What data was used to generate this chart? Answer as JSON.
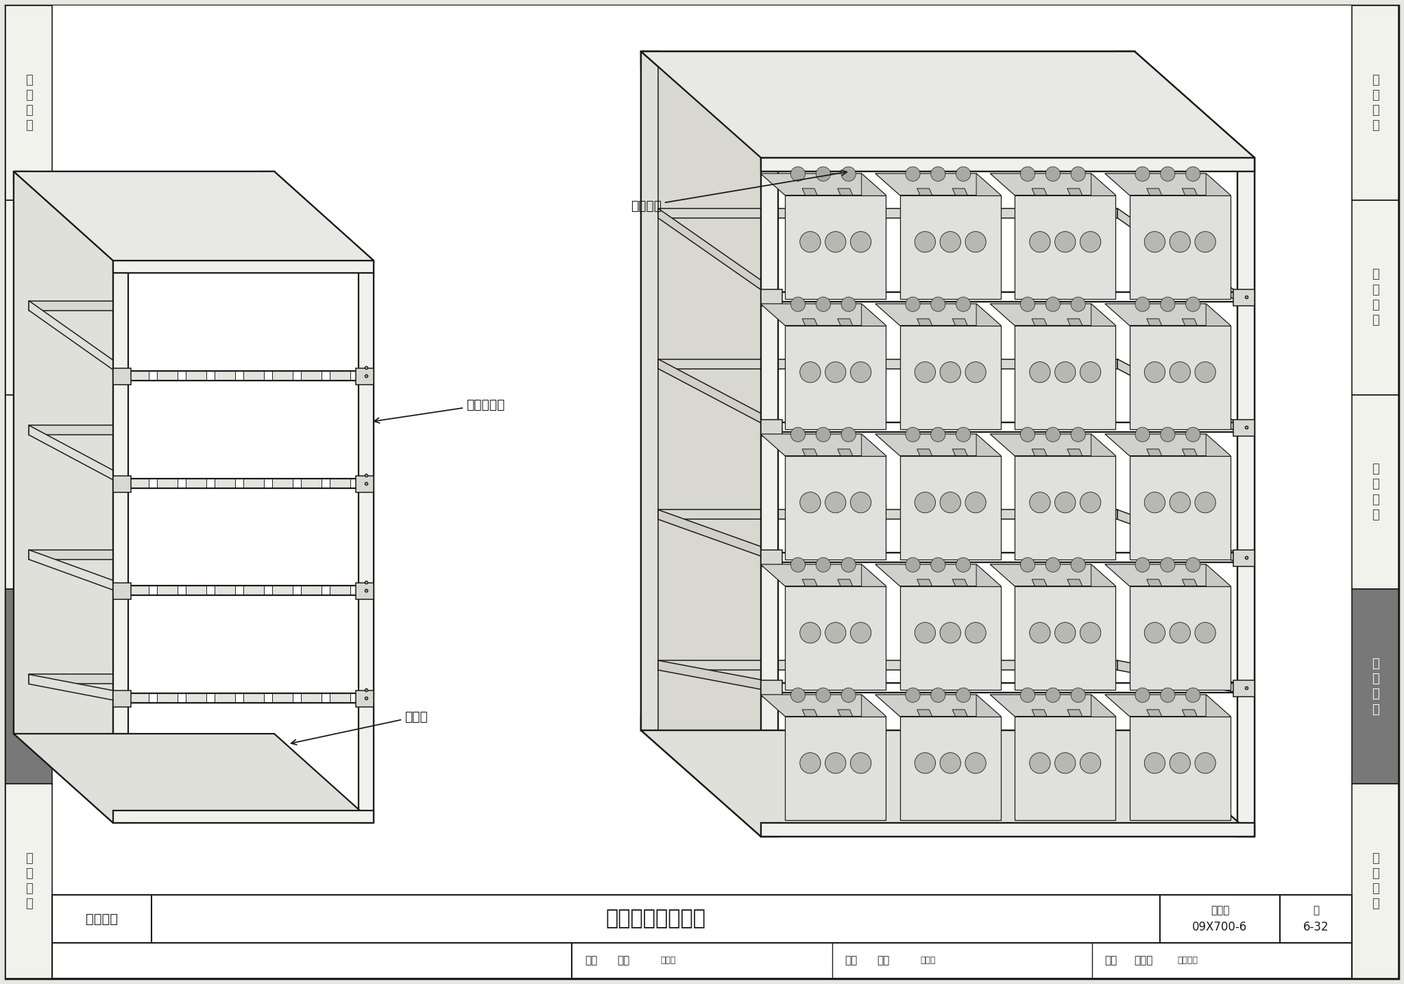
{
  "bg_color": "#e8e8e3",
  "paper_color": "#f2f2ed",
  "white": "#ffffff",
  "line_color": "#1a1a1a",
  "gray_dark": "#555555",
  "gray_mid": "#aaaaaa",
  "gray_light": "#d8d8d0",
  "sidebar_active_bg": "#787878",
  "sidebar_active_fg": "#ffffff",
  "sidebar_normal_fg": "#444444",
  "sidebar_items": [
    "机\n房\n工\n程",
    "供\n电\n电\n源",
    "缆\n线\n敲\n设",
    "设\n备\n安\n装",
    "防\n雷\n接\n地"
  ],
  "sidebar_active_idx": 3,
  "title_category": "设备安装",
  "title_main": "蓄电池组加固安装",
  "figure_no_label": "图集号",
  "figure_no": "09X700-6",
  "page_label": "页",
  "page_no": "6-32",
  "audit_label": "审核",
  "audit_name": "孙兰",
  "check_label": "校对",
  "check_name": "汪浩",
  "design_label": "设计",
  "design_name": "牟景华",
  "ann_dangbar": "电池挡条",
  "ann_lijia": "左右端立架",
  "ann_liang": "承重梁"
}
